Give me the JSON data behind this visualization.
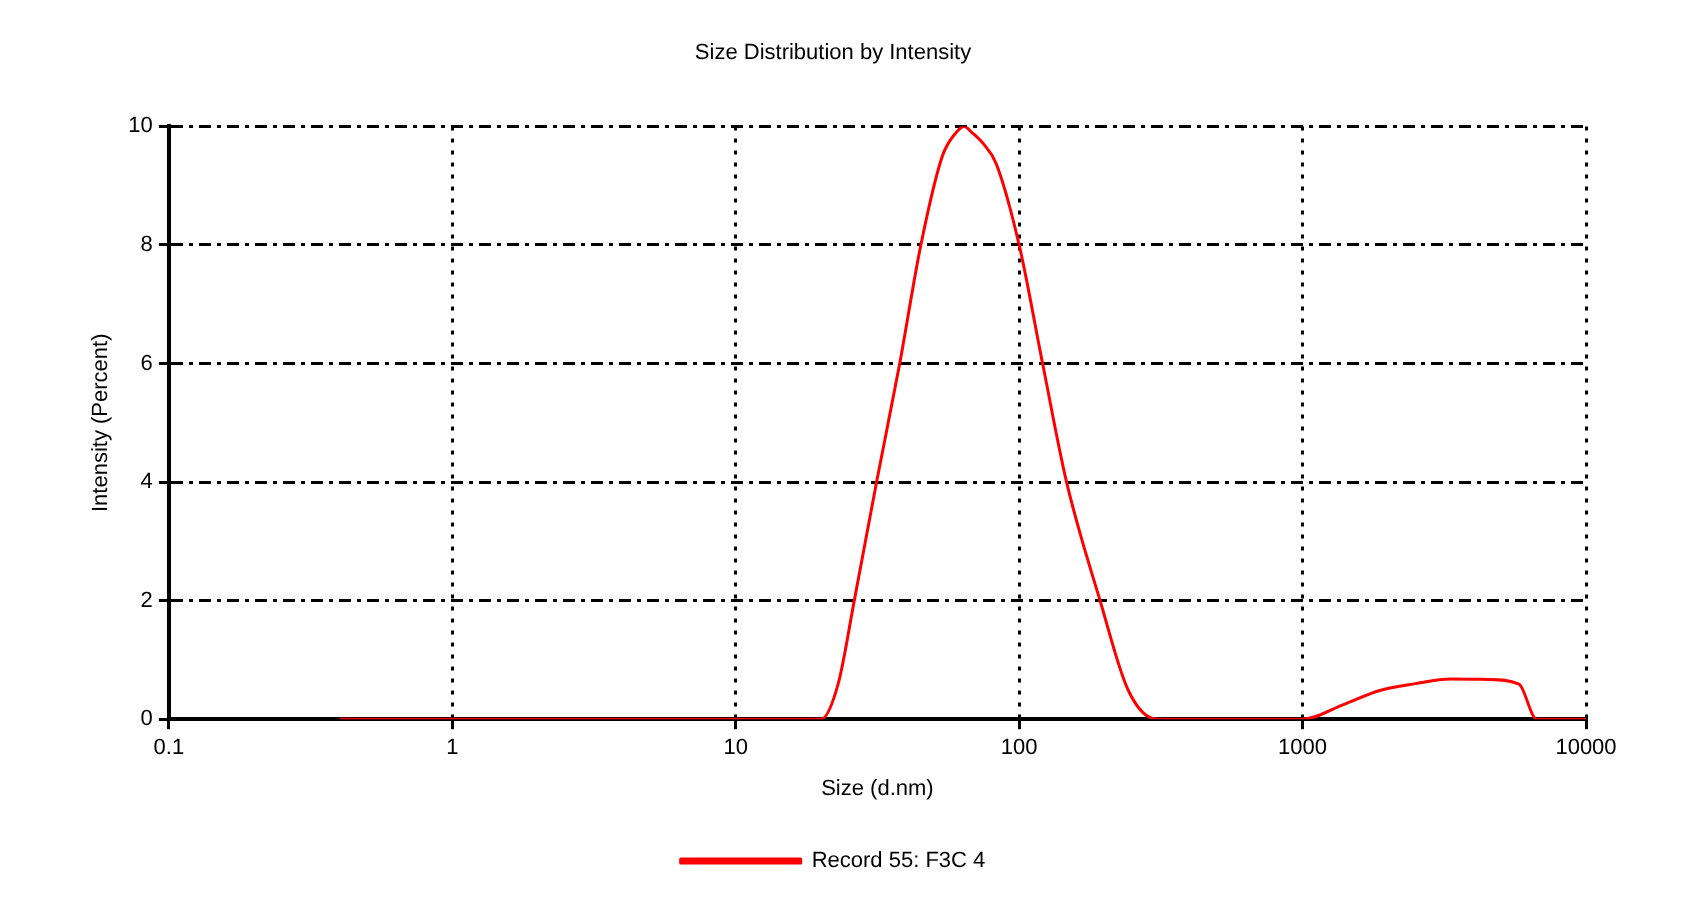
{
  "chart_data": {
    "type": "line",
    "title": "Size Distribution by Intensity",
    "xlabel": "Size (d.nm)",
    "ylabel": "Intensity (Percent)",
    "log": "x",
    "xlim": [
      0.1,
      10000
    ],
    "xticks": [
      0.1,
      1,
      10,
      100,
      1000,
      10000
    ],
    "ylim": [
      0,
      10
    ],
    "yticks": [
      0,
      2,
      4,
      6,
      8,
      10
    ],
    "grid": true,
    "legend": "bottom",
    "marker": "none",
    "line_style": "solid",
    "series": [
      {
        "name": "Record 55: F3C 4",
        "color": "#ff0000",
        "x": [
          0.4,
          1,
          10,
          20,
          23,
          26.2,
          31.4,
          37.9,
          45,
          53.6,
          60,
          64,
          68,
          75,
          83,
          100,
          121,
          147,
          193,
          243,
          307,
          500,
          1000,
          1400,
          1860,
          2500,
          3330,
          4500,
          5800,
          6700,
          8000,
          10000
        ],
        "values": [
          0,
          0,
          0,
          0,
          0.6,
          2,
          4,
          6,
          8,
          9.5,
          9.9,
          10,
          9.9,
          9.7,
          9.37,
          8,
          6,
          4,
          2,
          0.48,
          0,
          0,
          0,
          0.25,
          0.48,
          0.6,
          0.68,
          0.67,
          0.59,
          0,
          0,
          0
        ]
      }
    ]
  }
}
